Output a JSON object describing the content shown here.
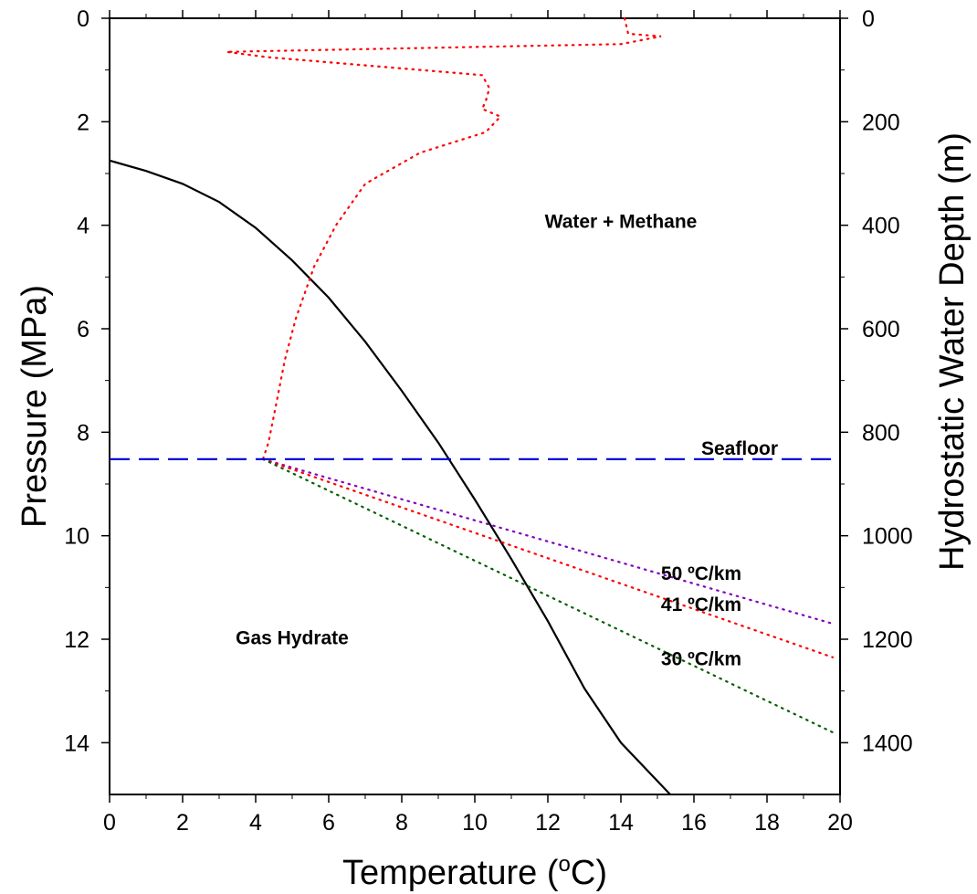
{
  "chart_data": {
    "type": "line",
    "xlabel": "Temperature (",
    "xlabel_sup": "o",
    "xlabel_suffix": "C)",
    "ylabel": "Pressure (MPa)",
    "y2label": "Hydrostatic Water Depth (m)",
    "xlim": [
      0,
      20
    ],
    "ylim": [
      15,
      0
    ],
    "y2lim": [
      1500,
      0
    ],
    "x_ticks": [
      0,
      2,
      4,
      6,
      8,
      10,
      12,
      14,
      16,
      18,
      20
    ],
    "y_ticks": [
      0,
      2,
      4,
      6,
      8,
      10,
      12,
      14
    ],
    "y2_ticks": [
      0,
      200,
      400,
      600,
      800,
      1000,
      1200,
      1400
    ],
    "grid": false,
    "series": [
      {
        "key": "stability",
        "style": "solid",
        "color": "#000000",
        "points": [
          [
            0.0,
            2.75
          ],
          [
            1.0,
            2.95
          ],
          [
            2.0,
            3.2
          ],
          [
            3.0,
            3.55
          ],
          [
            4.0,
            4.05
          ],
          [
            5.0,
            4.68
          ],
          [
            6.0,
            5.4
          ],
          [
            7.0,
            6.25
          ],
          [
            8.0,
            7.2
          ],
          [
            9.0,
            8.2
          ],
          [
            10.0,
            9.3
          ],
          [
            11.0,
            10.45
          ],
          [
            12.0,
            11.65
          ],
          [
            13.0,
            12.95
          ],
          [
            14.0,
            14.0
          ],
          [
            15.35,
            15.0
          ]
        ]
      },
      {
        "key": "water-column",
        "style": "dotted",
        "color": "#ff0000",
        "points": [
          [
            14.1,
            0.0
          ],
          [
            14.2,
            0.3
          ],
          [
            15.1,
            0.35
          ],
          [
            14.0,
            0.5
          ],
          [
            3.2,
            0.65
          ],
          [
            4.3,
            0.75
          ],
          [
            10.2,
            1.1
          ],
          [
            10.4,
            1.35
          ],
          [
            10.3,
            1.6
          ],
          [
            10.2,
            1.75
          ],
          [
            10.7,
            1.9
          ],
          [
            10.3,
            2.2
          ],
          [
            8.5,
            2.6
          ],
          [
            7.0,
            3.2
          ],
          [
            6.2,
            4.0
          ],
          [
            5.6,
            4.8
          ],
          [
            5.1,
            5.8
          ],
          [
            4.8,
            6.6
          ],
          [
            4.55,
            7.5
          ],
          [
            4.35,
            8.2
          ],
          [
            4.2,
            8.52
          ]
        ]
      },
      {
        "key": "gradient-50",
        "style": "dotted",
        "color": "#8000c0",
        "points": [
          [
            4.2,
            8.52
          ],
          [
            19.8,
            11.7
          ]
        ]
      },
      {
        "key": "gradient-41",
        "style": "dotted",
        "color": "#ff0000",
        "points": [
          [
            4.2,
            8.52
          ],
          [
            19.8,
            12.35
          ]
        ]
      },
      {
        "key": "gradient-30",
        "style": "dotted",
        "color": "#006000",
        "points": [
          [
            4.2,
            8.52
          ],
          [
            19.8,
            13.8
          ]
        ]
      }
    ],
    "seafloor": {
      "pressure": 8.52,
      "color": "#0000dd",
      "label": "Seafloor"
    },
    "annotations": [
      {
        "text": "Water + Methane",
        "x": 14.0,
        "y": 4.05
      },
      {
        "text": "Gas Hydrate",
        "x": 5.0,
        "y": 12.1
      },
      {
        "text": "50 ºC/km",
        "x": 16.2,
        "y": 10.85
      },
      {
        "text": "41 ºC/km",
        "x": 16.2,
        "y": 11.45
      },
      {
        "text": "30 ºC/km",
        "x": 16.2,
        "y": 12.5
      }
    ]
  }
}
